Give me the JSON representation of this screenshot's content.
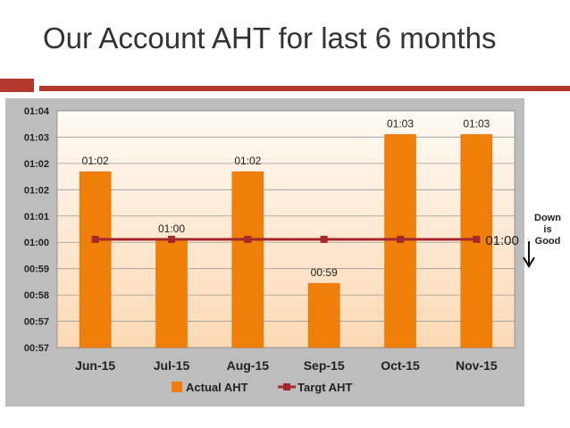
{
  "slide": {
    "title": "Our Account AHT for last 6 months",
    "accent_color": "#b5382e",
    "note_line1": "Down",
    "note_line2": "is",
    "note_line3": "Good"
  },
  "chart_data": {
    "type": "bar",
    "categories": [
      "Jun-15",
      "Jul-15",
      "Aug-15",
      "Sep-15",
      "Oct-15",
      "Nov-15"
    ],
    "y_tick_labels": [
      "00:57",
      "00:57",
      "00:58",
      "00:59",
      "01:00",
      "01:01",
      "01:02",
      "01:02",
      "01:03",
      "01:04"
    ],
    "ylim_seconds": [
      57,
      64
    ],
    "series": [
      {
        "name": "Actual AHT",
        "kind": "bar",
        "color": "#f07f09",
        "values_seconds": [
          62.2,
          60.2,
          62.2,
          58.9,
          63.3,
          63.3
        ],
        "labels": [
          "01:02",
          "01:00",
          "01:02",
          "00:59",
          "01:03",
          "01:03"
        ]
      },
      {
        "name": "Targt AHT",
        "kind": "line",
        "color": "#a3282e",
        "values_seconds": [
          60.2,
          60.2,
          60.2,
          60.2,
          60.2,
          60.2
        ],
        "end_label": "01:00"
      }
    ],
    "grid": true,
    "legend": "bottom"
  }
}
